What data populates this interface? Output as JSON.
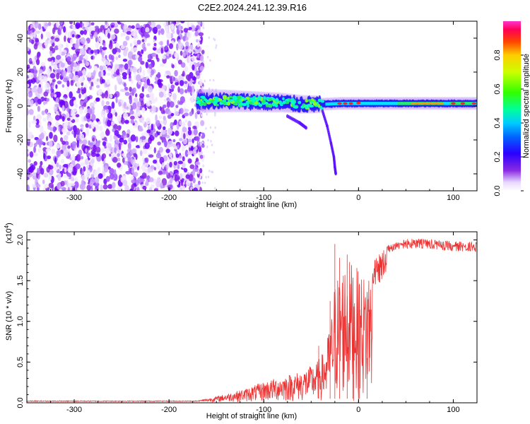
{
  "title": "C2E2.2024.241.12.39.R16",
  "chart_data": [
    {
      "type": "heatmap",
      "xlabel": "Height of straight line (km)",
      "ylabel": "Frequency (Hz)",
      "xlim": [
        -350,
        125
      ],
      "ylim": [
        -50,
        50
      ],
      "xticks": [
        -300,
        -200,
        -100,
        0,
        100
      ],
      "yticks": [
        -40,
        -20,
        0,
        20,
        40
      ],
      "colorbar": {
        "label": "Normalized spectral amplitude",
        "range": [
          0,
          1
        ],
        "ticks": [
          "0.0",
          "0.2",
          "0.4",
          "0.6",
          "0.8"
        ]
      },
      "regions": {
        "noise_x": [
          -350,
          -170
        ],
        "noise_y": [
          -50,
          50
        ],
        "signal_x": [
          -170,
          125
        ],
        "signal_center_freq": [
          [
            -170,
            3
          ],
          [
            -140,
            3
          ],
          [
            -110,
            2.5
          ],
          [
            -80,
            2
          ],
          [
            -60,
            1
          ],
          [
            -40,
            1
          ],
          [
            -20,
            1.5
          ],
          [
            0,
            1.5
          ],
          [
            50,
            1.5
          ],
          [
            100,
            1.5
          ],
          [
            125,
            1.5
          ]
        ],
        "weak_trails": [
          [
            [
              -75,
              -6
            ],
            [
              -62,
              -10
            ],
            [
              -55,
              -13
            ]
          ],
          [
            [
              -38,
              -3
            ],
            [
              -33,
              -12
            ],
            [
              -29,
              -22
            ],
            [
              -26,
              -30
            ],
            [
              -25,
              -36
            ],
            [
              -24,
              -40
            ]
          ]
        ]
      }
    },
    {
      "type": "line",
      "xlabel": "Height of straight line (km)",
      "ylabel": "SNR (10 * v/v)",
      "scale_note": "(x10^4)",
      "xlim": [
        -350,
        125
      ],
      "ylim": [
        0,
        2.1
      ],
      "xticks": [
        -300,
        -200,
        -100,
        0,
        100
      ],
      "yticks": [
        "0.0",
        "0.5",
        "1.0",
        "1.5",
        "2.0"
      ],
      "series": [
        {
          "color": "#ee3333",
          "envelope": [
            [
              -350,
              0.02
            ],
            [
              -250,
              0.02
            ],
            [
              -170,
              0.02
            ],
            [
              -160,
              0.04
            ],
            [
              -140,
              0.1
            ],
            [
              -120,
              0.16
            ],
            [
              -100,
              0.25
            ],
            [
              -80,
              0.32
            ],
            [
              -60,
              0.38
            ],
            [
              -45,
              0.48
            ],
            [
              -35,
              0.65
            ],
            [
              -28,
              1.1
            ],
            [
              -25,
              1.5
            ],
            [
              -20,
              1.6
            ],
            [
              -15,
              1.72
            ],
            [
              -10,
              1.75
            ],
            [
              -5,
              1.7
            ],
            [
              0,
              1.62
            ],
            [
              5,
              1.55
            ],
            [
              10,
              1.65
            ],
            [
              20,
              1.8
            ],
            [
              30,
              1.95
            ],
            [
              40,
              2.0
            ],
            [
              60,
              2.02
            ],
            [
              80,
              2.0
            ],
            [
              100,
              1.98
            ],
            [
              120,
              1.98
            ],
            [
              125,
              1.97
            ]
          ],
          "spikes": [
            [
              -25,
              1.95
            ],
            [
              -20,
              1.78
            ],
            [
              -12,
              1.82
            ],
            [
              -6,
              1.5
            ],
            [
              1,
              1.46
            ],
            [
              9,
              0.55
            ],
            [
              -30,
              1.25
            ],
            [
              -42,
              0.7
            ]
          ]
        }
      ]
    }
  ]
}
